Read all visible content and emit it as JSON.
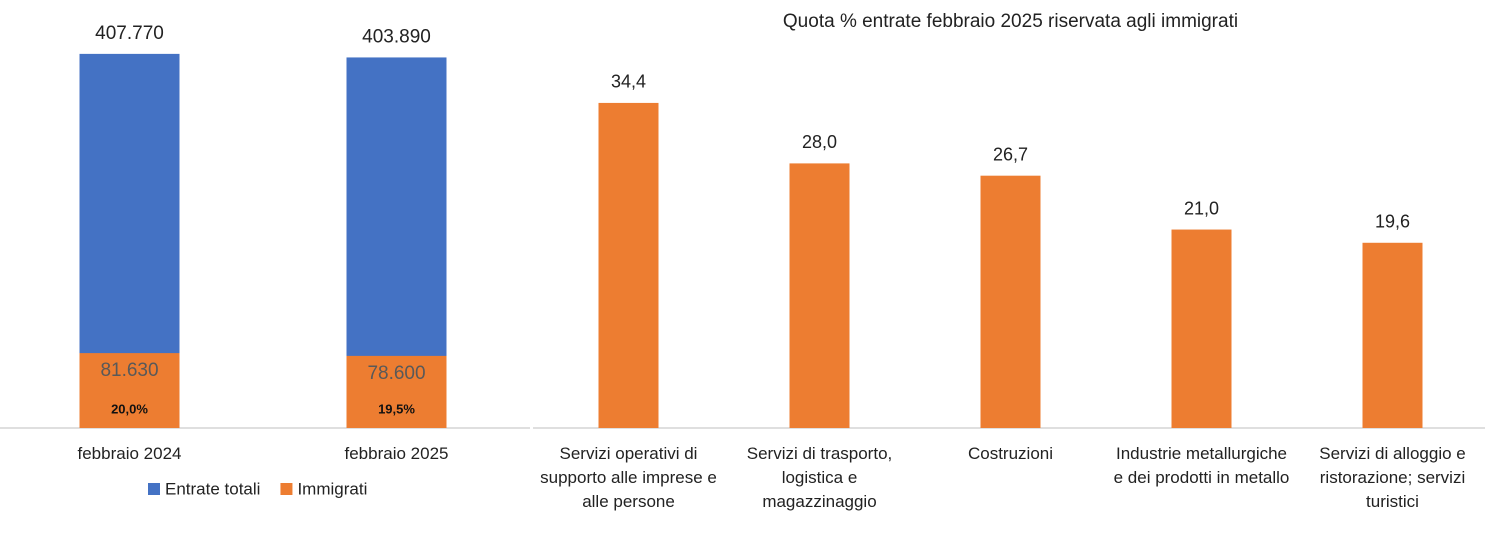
{
  "chart_data": [
    {
      "type": "bar",
      "barmode": "overlay",
      "categories": [
        "febbraio 2024",
        "febbraio 2025"
      ],
      "series": [
        {
          "name": "Entrate totali",
          "color": "#4472c4",
          "values": [
            407770,
            403890
          ],
          "value_labels": [
            "407.770",
            "403.890"
          ]
        },
        {
          "name": "Immigrati",
          "color": "#ed7d31",
          "values": [
            81630,
            78600
          ],
          "value_labels": [
            "81.630",
            "78.600"
          ],
          "shares": [
            20.0,
            19.5
          ],
          "share_labels": [
            "20,0%",
            "19,5%"
          ]
        }
      ],
      "ylim": [
        0,
        412000
      ],
      "legend": "bottom"
    },
    {
      "type": "bar",
      "title": "Quota % entrate febbraio 2025 riservata agli immigrati",
      "categories": [
        "Servizi operativi di supporto alle imprese e alle persone",
        "Servizi di trasporto, logistica e magazzinaggio",
        "Costruzioni",
        "Industrie metallurgiche e dei prodotti in metallo",
        "Servizi di alloggio e ristorazione; servizi turistici"
      ],
      "values": [
        34.4,
        28.0,
        26.7,
        21.0,
        19.6
      ],
      "value_labels": [
        "34,4",
        "28,0",
        "26,7",
        "21,0",
        "19,6"
      ],
      "color": "#ed7d31",
      "ylim": [
        0,
        40
      ]
    }
  ]
}
